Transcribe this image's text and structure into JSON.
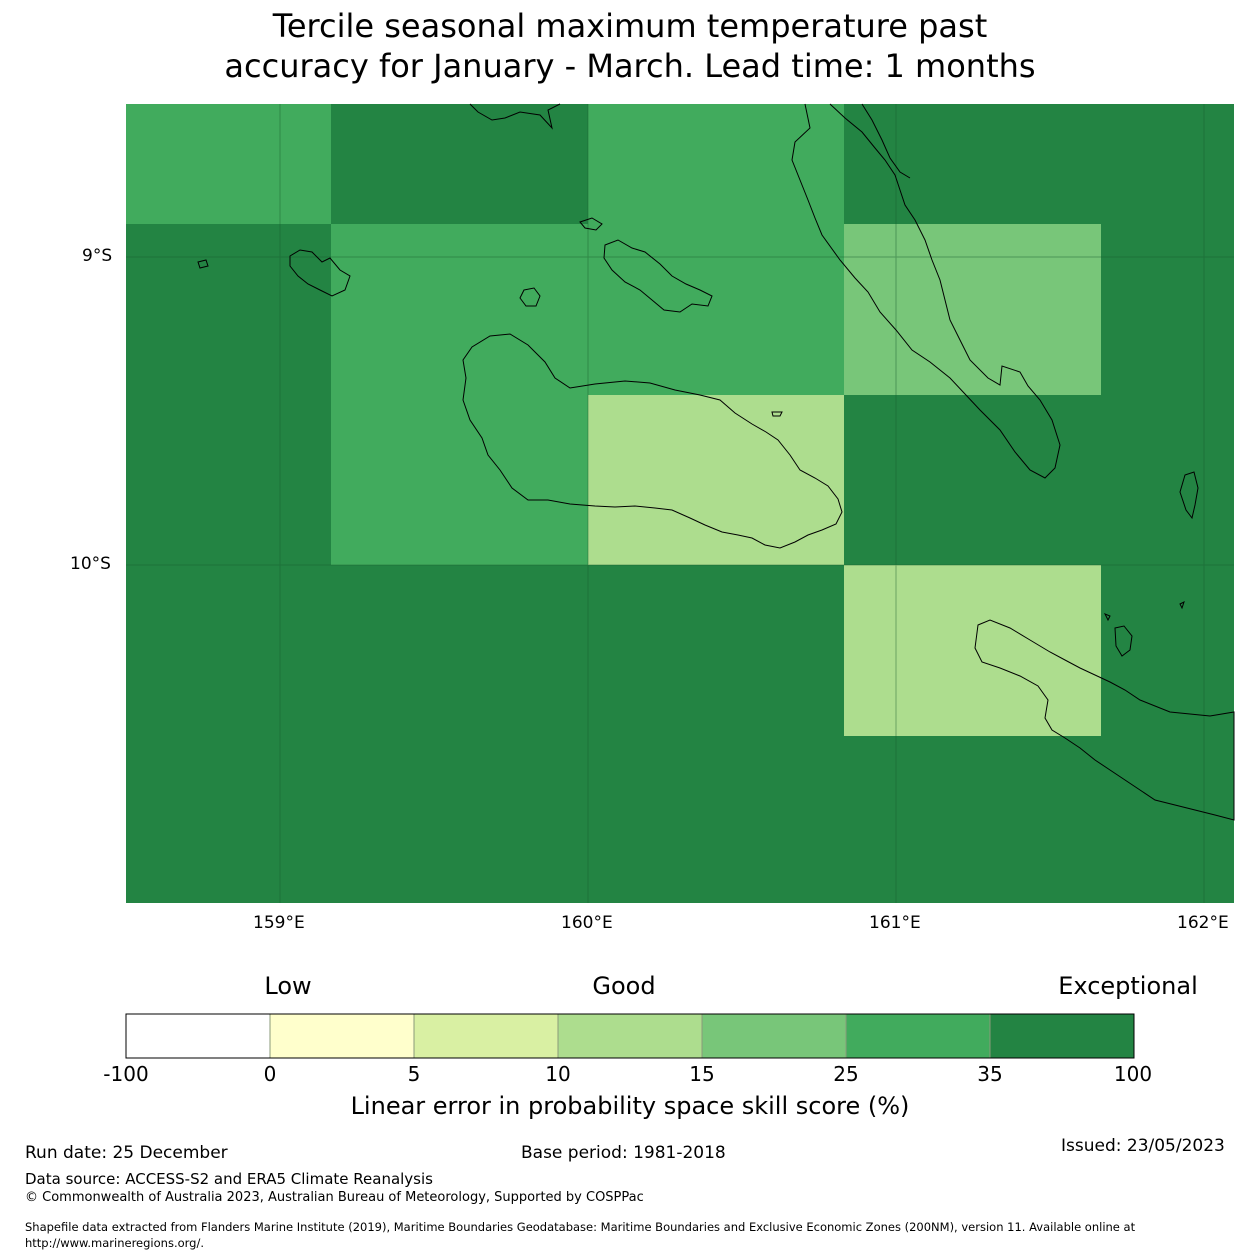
{
  "title_line1": "Tercile seasonal maximum temperature past",
  "title_line2": "accuracy for January - March. Lead time: 1 months",
  "map": {
    "lat_labels": [
      "9°S",
      "10°S"
    ],
    "lon_labels": [
      "159°E",
      "160°E",
      "161°E",
      "162°E"
    ],
    "colors": {
      "exceptional": "#238443",
      "c25_35": "#41ab5d",
      "c15_25": "#78c679",
      "c10_15": "#addd8e",
      "c5_10": "#d9f0a3",
      "c0_5": "#ffffcc",
      "neg": "#ffffff"
    },
    "grid_cells": [
      {
        "row": 0,
        "col": 0,
        "cls": "c25_35"
      },
      {
        "row": 0,
        "col": 1,
        "cls": "exceptional"
      },
      {
        "row": 0,
        "col": 2,
        "cls": "c25_35"
      },
      {
        "row": 0,
        "col": 3,
        "cls": "exceptional"
      },
      {
        "row": 1,
        "col": 0,
        "cls": "exceptional"
      },
      {
        "row": 1,
        "col": 1,
        "cls": "c25_35"
      },
      {
        "row": 1,
        "col": 2,
        "cls": "c25_35"
      },
      {
        "row": 1,
        "col": 3,
        "cls": "c15_25"
      },
      {
        "row": 2,
        "col": 0,
        "cls": "exceptional"
      },
      {
        "row": 2,
        "col": 1,
        "cls": "c25_35"
      },
      {
        "row": 2,
        "col": 2,
        "cls": "c10_15"
      },
      {
        "row": 2,
        "col": 3,
        "cls": "exceptional"
      },
      {
        "row": 3,
        "col": 3,
        "cls": "c10_15"
      }
    ]
  },
  "colorbar": {
    "categories": [
      "Low",
      "Good",
      "Exceptional"
    ],
    "tick_labels": [
      "-100",
      "0",
      "5",
      "10",
      "15",
      "25",
      "35",
      "100"
    ],
    "segment_colors": [
      "#ffffff",
      "#ffffcc",
      "#d9f0a3",
      "#addd8e",
      "#78c679",
      "#41ab5d",
      "#238443"
    ],
    "title": "Linear error in probability space skill score (%)"
  },
  "footer": {
    "run_date": "Run date: 25 December",
    "base_period": "Base period: 1981-2018",
    "issued": "Issued: 23/05/2023",
    "data_source": "Data source: ACCESS-S2 and ERA5 Climate Reanalysis",
    "copyright": "© Commonwealth of Australia 2023, Australian Bureau of Meteorology, Supported by COSPPac",
    "shapefile_line1": "Shapefile data extracted from Flanders Marine Institute (2019), Maritime Boundaries Geodatabase: Maritime Boundaries and Exclusive Economic Zones (200NM), version 11. Available online at",
    "shapefile_line2": "http://www.marineregions.org/."
  }
}
